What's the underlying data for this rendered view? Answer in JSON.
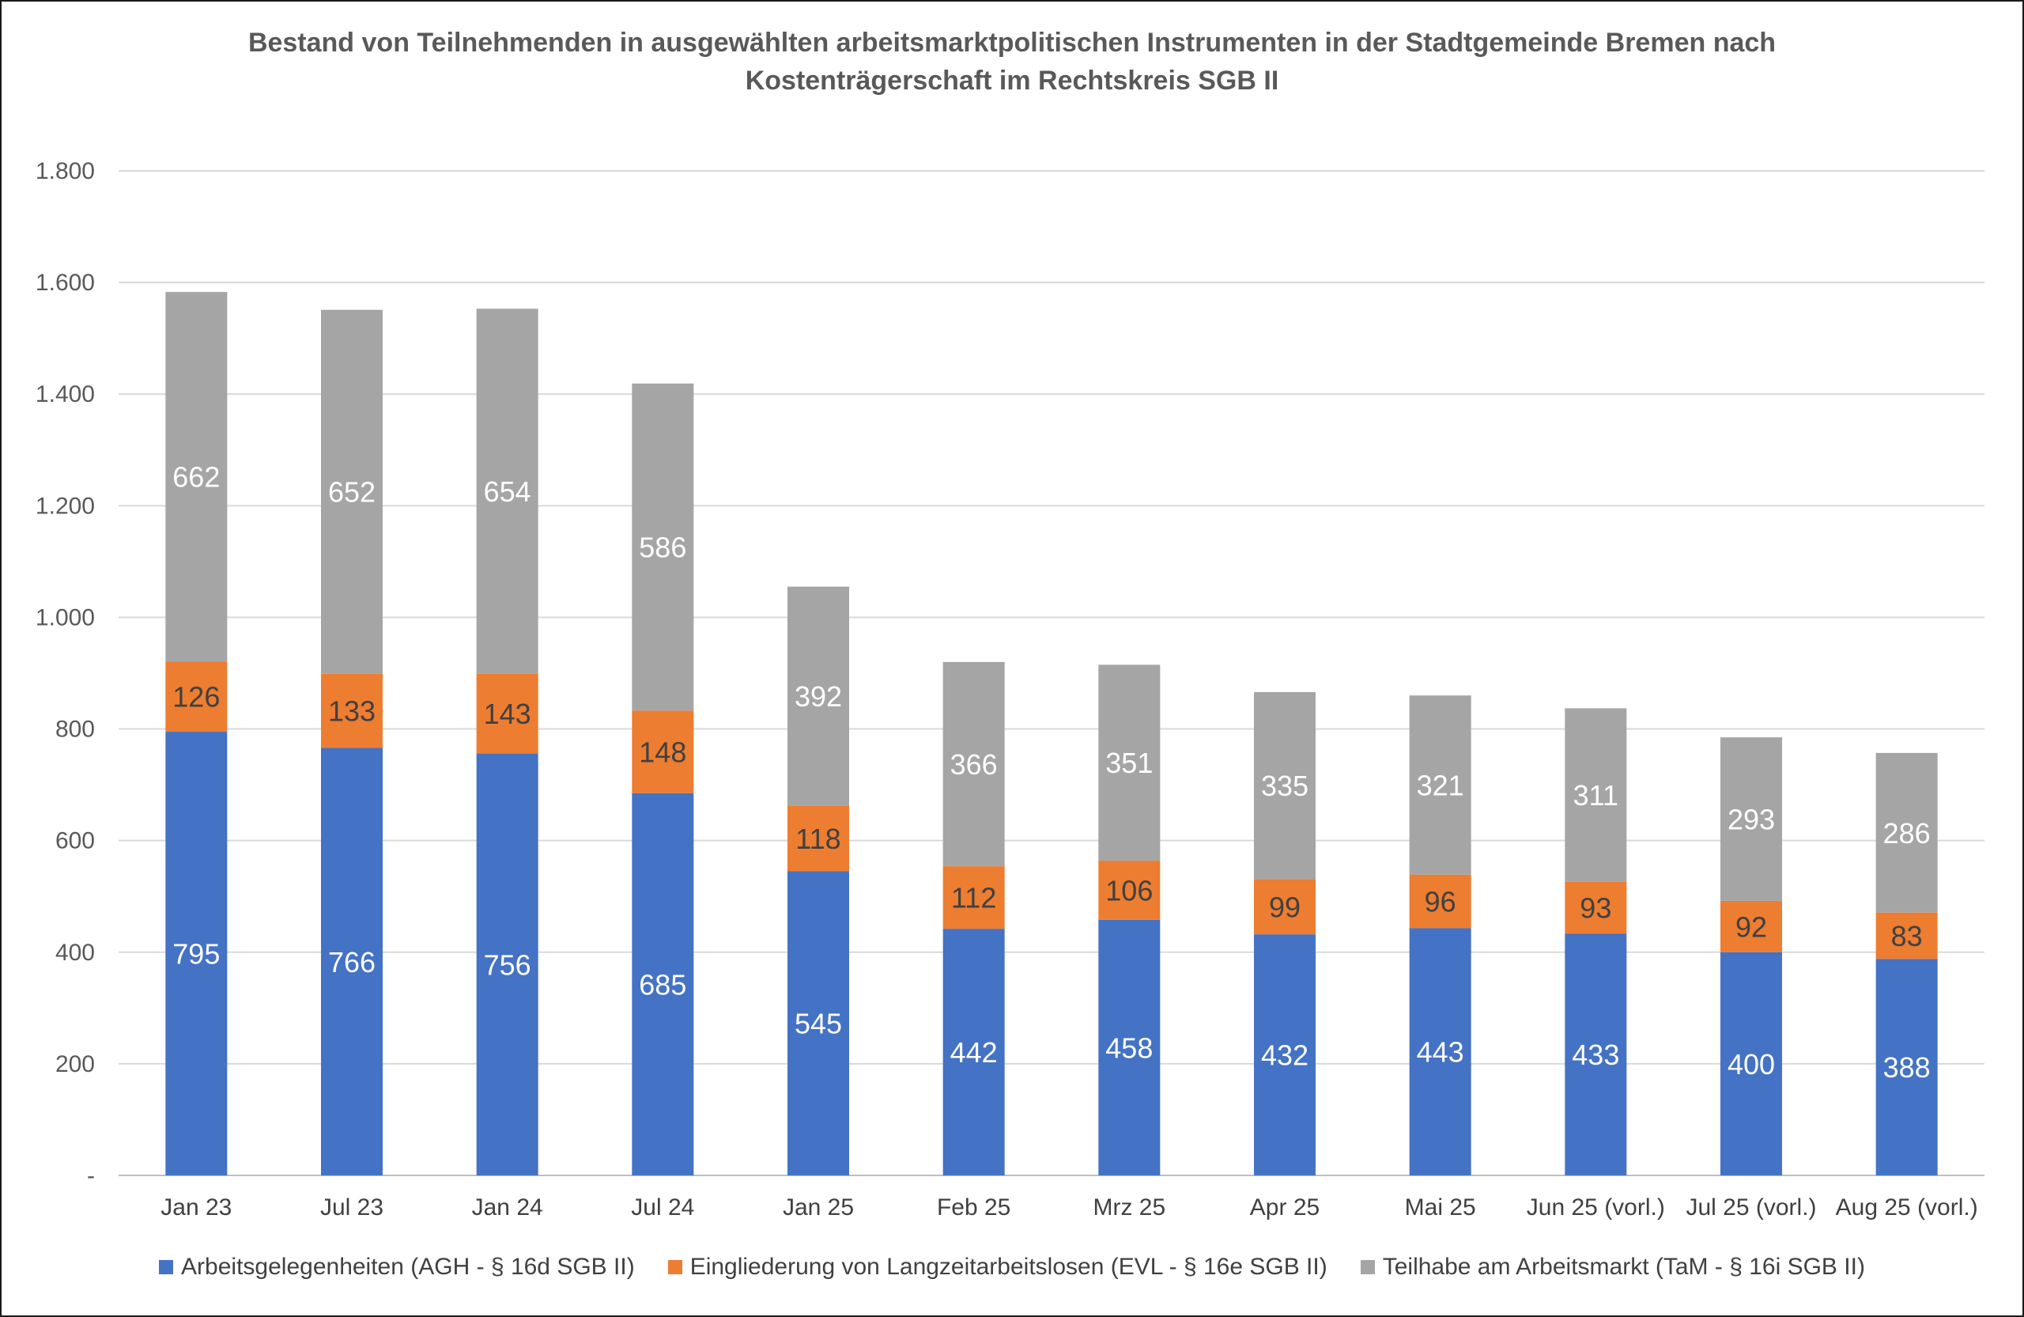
{
  "chart_data": {
    "type": "bar",
    "stacked": true,
    "title": "Bestand von Teilnehmenden in ausgewählten arbeitsmarktpolitischen Instrumenten in der Stadtgemeinde Bremen nach Kostenträgerschaft im Rechtskreis SGB II",
    "categories": [
      "Jan 23",
      "Jul 23",
      "Jan 24",
      "Jul 24",
      "Jan 25",
      "Feb 25",
      "Mrz 25",
      "Apr 25",
      "Mai 25",
      "Jun 25 (vorl.)",
      "Jul 25 (vorl.)",
      "Aug 25 (vorl.)"
    ],
    "series": [
      {
        "name": "Arbeitsgelegenheiten (AGH - § 16d SGB II)",
        "color": "#4472C4",
        "label_color": "#ffffff",
        "values": [
          795,
          766,
          756,
          685,
          545,
          442,
          458,
          432,
          443,
          433,
          400,
          388
        ]
      },
      {
        "name": "Eingliederung von Langzeitarbeitslosen (EVL - § 16e SGB II)",
        "color": "#ED7D31",
        "label_color": "#404040",
        "values": [
          126,
          133,
          143,
          148,
          118,
          112,
          106,
          99,
          96,
          93,
          92,
          83
        ]
      },
      {
        "name": "Teilhabe am Arbeitsmarkt (TaM - § 16i SGB II)",
        "color": "#A5A5A5",
        "label_color": "#ffffff",
        "values": [
          662,
          652,
          654,
          586,
          392,
          366,
          351,
          335,
          321,
          311,
          293,
          286
        ]
      }
    ],
    "y_ticks": [
      "-",
      "200",
      "400",
      "600",
      "800",
      "1.000",
      "1.200",
      "1.400",
      "1.600",
      "1.800"
    ],
    "ylim": [
      0,
      1800
    ],
    "ytick_step": 200,
    "grid": true,
    "legend_position": "bottom"
  }
}
